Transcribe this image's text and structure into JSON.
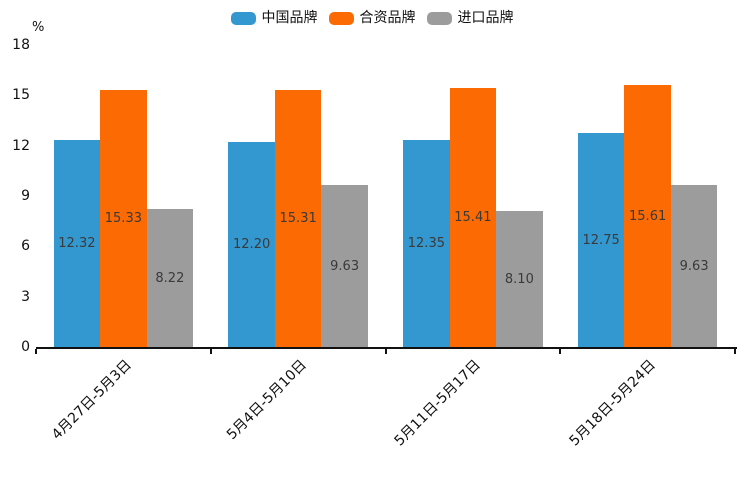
{
  "chart_data": {
    "type": "bar",
    "title": "",
    "unit_label": "%",
    "categories": [
      "4月27日-5月3日",
      "5月4日-5月10日",
      "5月11日-5月17日",
      "5月18日-5月24日"
    ],
    "series": [
      {
        "name": "中国品牌",
        "color": "#3498d0",
        "values": [
          12.32,
          12.2,
          12.35,
          12.75
        ]
      },
      {
        "name": "合资品牌",
        "color": "#fc6a03",
        "values": [
          15.33,
          15.31,
          15.41,
          15.61
        ]
      },
      {
        "name": "进口品牌",
        "color": "#9c9c9c",
        "values": [
          8.22,
          9.63,
          8.1,
          9.63
        ]
      }
    ],
    "ylim": [
      0,
      18
    ],
    "yticks": [
      0,
      3,
      6,
      9,
      12,
      15,
      18
    ],
    "legend_position": "top-center",
    "grid": false,
    "value_label_decimals": 2,
    "bar_label_color": "#3a3a3a",
    "axis_color": "#111111"
  }
}
